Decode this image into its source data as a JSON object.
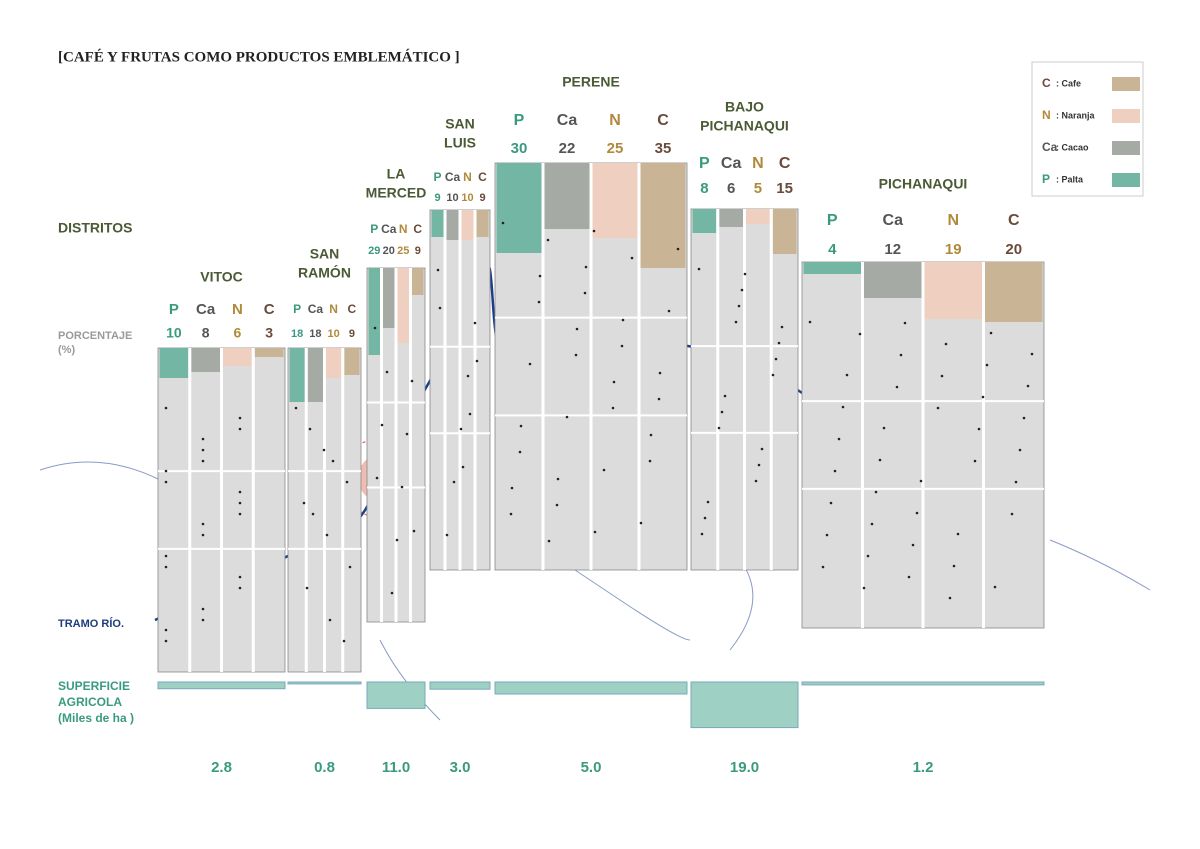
{
  "title": "[CAFÉ Y FRUTAS COMO PRODUCTOS EMBLEMÁTICO ]",
  "row_labels": {
    "districts": "DISTRITOS",
    "percentage": [
      "PORCENTAJE",
      "(%)"
    ],
    "river": "TRAMO RÍO.",
    "area": [
      "SUPERFICIE",
      "AGRICOLA",
      "(Miles de ha )"
    ]
  },
  "legend": [
    {
      "code": "C",
      "label": ": Cafe",
      "color": "#c9b596"
    },
    {
      "code": "N",
      "label": ": Naranja",
      "color": "#efcfbf"
    },
    {
      "code": "Ca",
      "label": ": Cacao",
      "color": "#a5aaa4"
    },
    {
      "code": "P",
      "label": ": Palta",
      "color": "#72b6a3"
    }
  ],
  "districts": [
    {
      "name": [
        "VITOC"
      ],
      "products": [
        {
          "code": "P",
          "value": 10
        },
        {
          "code": "Ca",
          "value": 8
        },
        {
          "code": "N",
          "value": 6
        },
        {
          "code": "C",
          "value": 3
        }
      ],
      "area": 2.8
    },
    {
      "name": [
        "SAN",
        "RAMÓN"
      ],
      "products": [
        {
          "code": "P",
          "value": 18
        },
        {
          "code": "Ca",
          "value": 18
        },
        {
          "code": "N",
          "value": 10
        },
        {
          "code": "C",
          "value": 9
        }
      ],
      "area": 0.8
    },
    {
      "name": [
        "LA",
        "MERCED"
      ],
      "products": [
        {
          "code": "P",
          "value": 29
        },
        {
          "code": "Ca",
          "value": 20
        },
        {
          "code": "N",
          "value": 25
        },
        {
          "code": "C",
          "value": 9
        }
      ],
      "area": {
        "value": 11,
        "label": "11.0"
      }
    },
    {
      "name": [
        "SAN",
        "LUIS"
      ],
      "products": [
        {
          "code": "P",
          "value": 9
        },
        {
          "code": "Ca",
          "value": 10
        },
        {
          "code": "N",
          "value": 10
        },
        {
          "code": "C",
          "value": 9
        }
      ],
      "area": {
        "value": 3,
        "label": "3.0"
      }
    },
    {
      "name": [
        "PERENE"
      ],
      "products": [
        {
          "code": "P",
          "value": 30
        },
        {
          "code": "Ca",
          "value": 22
        },
        {
          "code": "N",
          "value": 25
        },
        {
          "code": "C",
          "value": 35
        }
      ],
      "area": {
        "value": 5,
        "label": "5.0"
      }
    },
    {
      "name": [
        "BAJO",
        "PICHANAQUI"
      ],
      "products": [
        {
          "code": "P",
          "value": 8
        },
        {
          "code": "Ca",
          "value": 6
        },
        {
          "code": "N",
          "value": 5
        },
        {
          "code": "C",
          "value": 15
        }
      ],
      "area": {
        "value": 19,
        "label": "19.0"
      }
    },
    {
      "name": [
        "PICHANAQUI"
      ],
      "products": [
        {
          "code": "P",
          "value": 4
        },
        {
          "code": "Ca",
          "value": 12
        },
        {
          "code": "N",
          "value": 19
        },
        {
          "code": "C",
          "value": 20
        }
      ],
      "area": 1.2
    }
  ]
}
